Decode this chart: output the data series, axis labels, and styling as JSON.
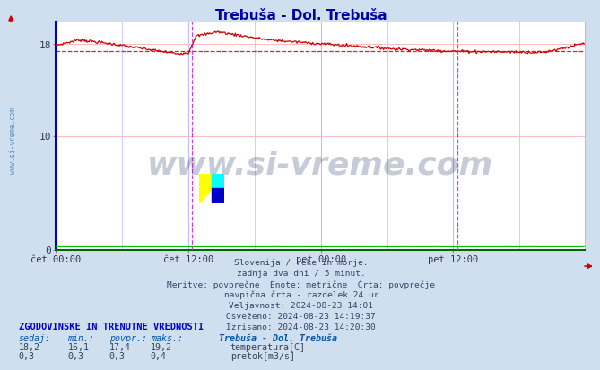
{
  "title": "Trebuša - Dol. Trebuša",
  "title_color": "#0000aa",
  "bg_color": "#d0dff0",
  "plot_bg_color": "#ffffff",
  "grid_color_h": "#ffbbbb",
  "grid_color_v": "#bbbbff",
  "temp_line_color": "#cc0000",
  "flow_line_color": "#00bb00",
  "avg_value": 17.4,
  "ymin": 0,
  "ymax": 20,
  "yticks": [
    0,
    10,
    18
  ],
  "num_points": 576,
  "x_tick_labels": [
    "čet 00:00",
    "čet 12:00",
    "pet 00:00",
    "pet 12:00"
  ],
  "x_tick_positions": [
    0,
    144,
    288,
    432
  ],
  "vline_positions": [
    148,
    436
  ],
  "vline_color": "#cc44cc",
  "left_axis_color": "#0000cc",
  "bottom_axis_color": "#006600",
  "watermark_text": "www.si-vreme.com",
  "watermark_color": "#1a3060",
  "watermark_alpha": 0.25,
  "info_lines": [
    "Slovenija / reke in morje.",
    "zadnja dva dni / 5 minut.",
    "Meritve: povprečne  Enote: metrične  Črta: povprečje",
    "navpična črta - razdelek 24 ur",
    "Veljavnost: 2024-08-23 14:01",
    "Osveženo: 2024-08-23 14:19:37",
    "Izrisano: 2024-08-23 14:20:30"
  ],
  "table_title": "ZGODOVINSKE IN TRENUTNE VREDNOSTI",
  "table_headers": [
    "sedaj:",
    "min.:",
    "povpr.:",
    "maks.:"
  ],
  "table_station": "Trebuša - Dol. Trebuša",
  "table_data": [
    {
      "name": "temperatura[C]",
      "color": "#cc0000",
      "sedaj": "18,2",
      "min": "16,1",
      "povpr": "17,4",
      "maks": "19,2"
    },
    {
      "name": "pretok[m3/s]",
      "color": "#00aa00",
      "sedaj": "0,3",
      "min": "0,3",
      "povpr": "0,3",
      "maks": "0,4"
    }
  ],
  "left_label_color": "#4488bb"
}
